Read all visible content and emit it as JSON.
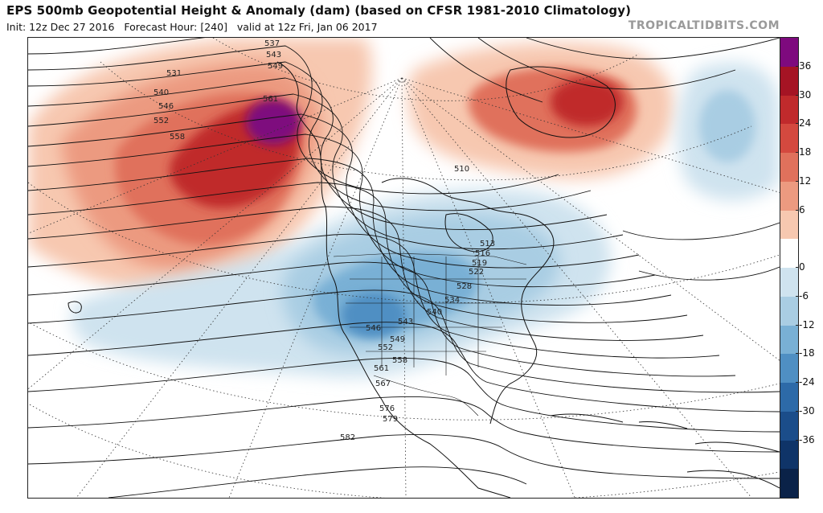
{
  "header": {
    "title": "EPS 500mb Geopotential Height & Anomaly (dam) (based on CFSR 1981-2010 Climatology)",
    "init": "Init: 12z Dec 27 2016",
    "forecast_hour": "Forecast Hour: [240]",
    "valid": "valid at 12z Fri, Jan 06 2017",
    "brand": "TROPICALTIDBITS.COM"
  },
  "colorbar": {
    "ticks": [
      "36",
      "30",
      "24",
      "18",
      "12",
      "6",
      "0",
      "-6",
      "-12",
      "-18",
      "-24",
      "-30",
      "-36"
    ],
    "colors": [
      "#7e0a7e",
      "#a51424",
      "#c02a2c",
      "#d4493f",
      "#e0715c",
      "#ec9a80",
      "#f7c8b0",
      "#ffffff",
      "#cfe3ef",
      "#a9cde3",
      "#79b0d5",
      "#4f8fc3",
      "#2d6aa8",
      "#1b4d8a",
      "#0f3468",
      "#0a2248"
    ]
  },
  "map": {
    "region": "North America",
    "height_labels": [
      "537",
      "543",
      "549",
      "531",
      "540",
      "546",
      "552",
      "558",
      "561",
      "510",
      "513",
      "516",
      "519",
      "522",
      "528",
      "534",
      "540",
      "543",
      "546",
      "549",
      "552",
      "558",
      "561",
      "567",
      "576",
      "579",
      "582"
    ],
    "anomaly_centers": [
      {
        "sign": "positive",
        "area": "Alaska / Gulf of Alaska",
        "max": 36
      },
      {
        "sign": "positive",
        "area": "Greenland / Davis Strait",
        "max": 24
      },
      {
        "sign": "negative",
        "area": "Western / Central United States",
        "max": -24
      },
      {
        "sign": "negative",
        "area": "North Atlantic",
        "max": -12
      }
    ]
  }
}
